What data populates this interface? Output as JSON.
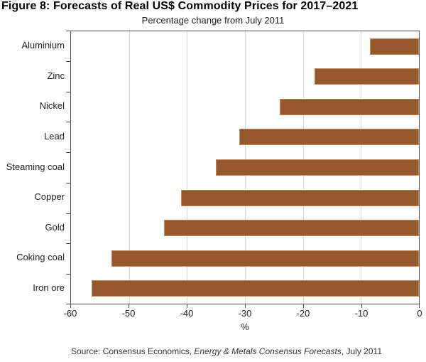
{
  "figure": {
    "title": "Figure 8: Forecasts of Real US$ Commodity Prices for 2017–2021",
    "subtitle": "Percentage change from July 2011"
  },
  "chart_data": {
    "type": "bar",
    "orientation": "horizontal",
    "title": "Figure 8: Forecasts of Real US$ Commodity Prices for 2017–2021",
    "subtitle": "Percentage change from July 2011",
    "categories": [
      "Aluminium",
      "Zinc",
      "Nickel",
      "Lead",
      "Steaming coal",
      "Copper",
      "Gold",
      "Coking coal",
      "Iron ore"
    ],
    "values": [
      -8.5,
      -18,
      -24,
      -31,
      -35,
      -41,
      -44,
      -53,
      -56.5
    ],
    "xlabel": "%",
    "ylabel": "",
    "xlim": [
      -60,
      0
    ],
    "xticks": [
      -60,
      -50,
      -40,
      -30,
      -20,
      -10,
      0
    ],
    "grid": true,
    "legend": false
  },
  "axis": {
    "x_title": "%"
  },
  "source": {
    "prefix": "Source:  Consensus Economics, ",
    "italic": "Energy & Metals Consensus Forecasts",
    "suffix": ", July 2011"
  },
  "colors": {
    "bar_fill": "#96572D",
    "bar_border": "#C08A58",
    "gridline": "#D9D9D9",
    "axis": "#4D4D4D",
    "text": "#1F1F1F"
  }
}
